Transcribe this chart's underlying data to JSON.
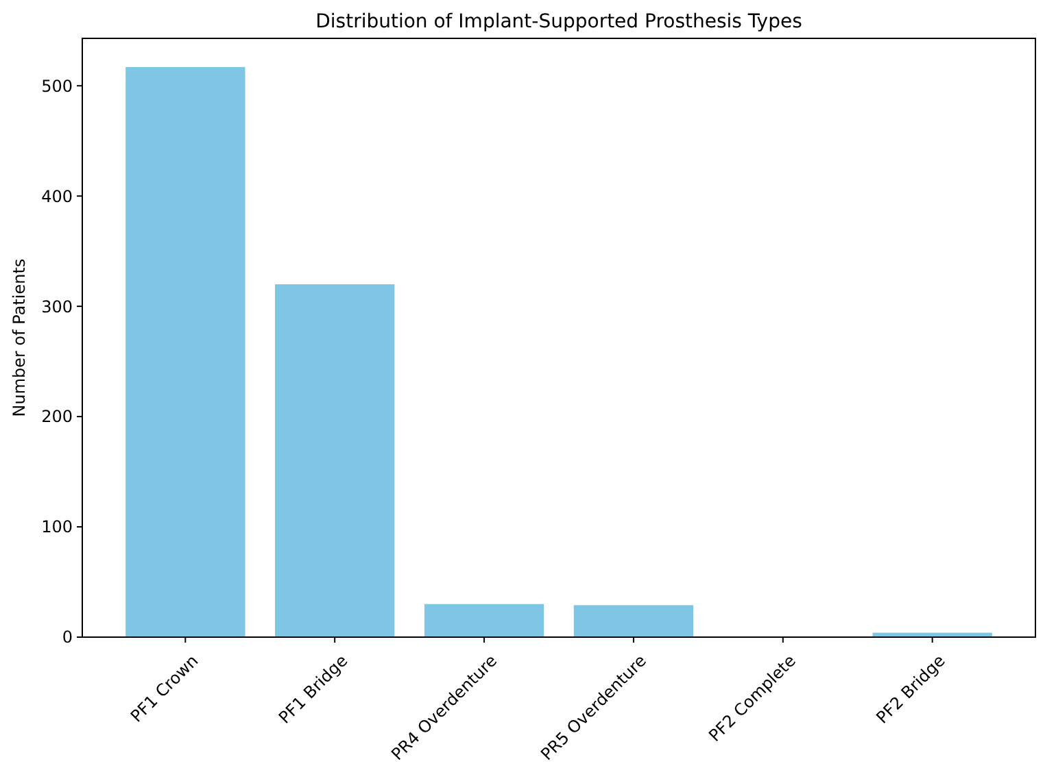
{
  "chart_data": {
    "type": "bar",
    "title": "Distribution of Implant-Supported Prosthesis Types",
    "ylabel": "Number of Patients",
    "categories": [
      "PF1 Crown",
      "PF1 Bridge",
      "PR4 Overdenture",
      "PR5 Overdenture",
      "PF2 Complete",
      "PF2 Bridge"
    ],
    "values": [
      517,
      320,
      30,
      29,
      0,
      4
    ],
    "color": "#7ec6e4",
    "ylim": [
      0,
      543
    ],
    "yticks": [
      0,
      100,
      200,
      300,
      400,
      500
    ],
    "grid": false
  }
}
